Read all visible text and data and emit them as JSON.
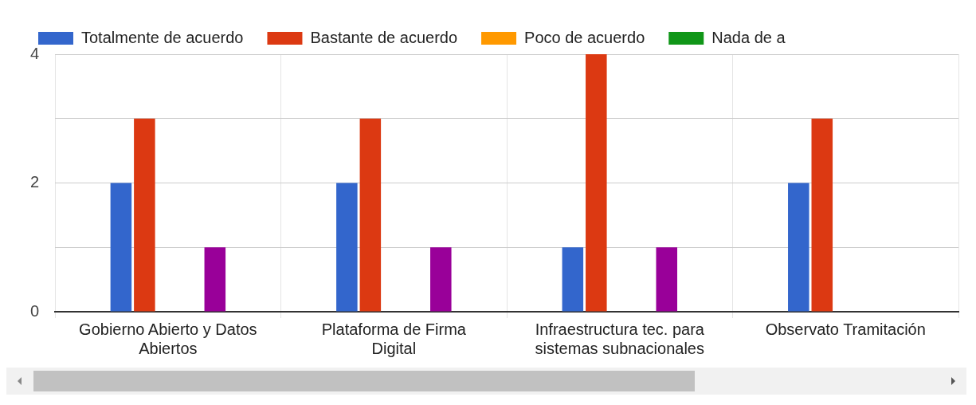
{
  "chart_data": {
    "type": "bar",
    "categories": [
      "Gobierno Abierto y Datos Abiertos",
      "Plataforma de Firma Digital",
      "Infraestructura tec. para sistemas subnacionales",
      "Observato Tramitación"
    ],
    "series": [
      {
        "name": "Totalmente de acuerdo",
        "color": "#3366cc",
        "values": [
          2,
          2,
          1,
          2
        ]
      },
      {
        "name": "Bastante de acuerdo",
        "color": "#dc3912",
        "values": [
          3,
          3,
          4,
          3
        ]
      },
      {
        "name": "Poco de acuerdo",
        "color": "#ff9900",
        "values": [
          0,
          0,
          0,
          null
        ]
      },
      {
        "name": "Nada de a",
        "color": "#109618",
        "values": [
          0,
          0,
          0,
          null
        ]
      },
      {
        "color": "#990099",
        "values": [
          1,
          1,
          1,
          null
        ]
      }
    ],
    "ylim": [
      0,
      4
    ],
    "yticks": [
      0,
      {
        "value": 1,
        "label": null
      },
      2,
      {
        "value": 3,
        "label": null
      },
      4
    ],
    "grid": true,
    "legend": "top left"
  }
}
